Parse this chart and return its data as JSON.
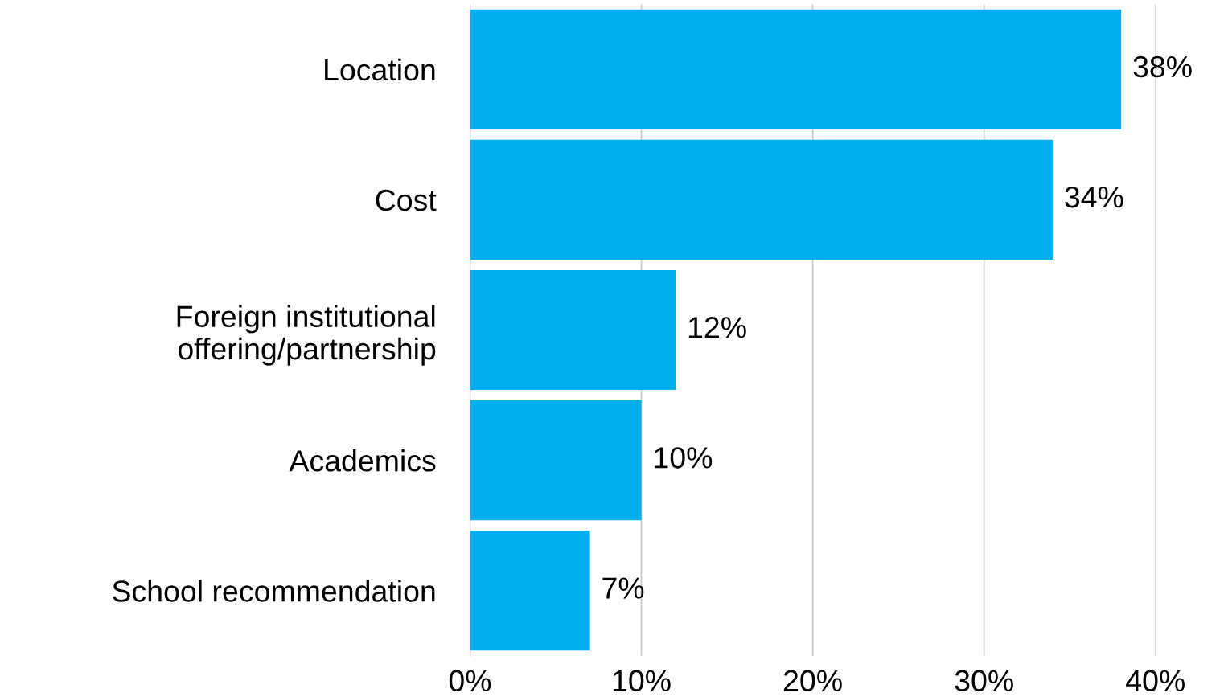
{
  "chart_data": {
    "type": "bar",
    "orientation": "horizontal",
    "categories": [
      "Location",
      "Cost",
      "Foreign institutional\noffering/partnership",
      "Academics",
      "School recommendation"
    ],
    "values": [
      38,
      34,
      12,
      10,
      7
    ],
    "value_labels": [
      "38%",
      "34%",
      "12%",
      "10%",
      "7%"
    ],
    "color": "#00aeef",
    "xlim": [
      0,
      40
    ],
    "xticks": [
      {
        "value": 0,
        "label": "0%"
      },
      {
        "value": 10,
        "label": "10%"
      },
      {
        "value": 20,
        "label": "20%"
      },
      {
        "value": 30,
        "label": "30%"
      },
      {
        "value": 40,
        "label": "40%"
      }
    ],
    "grid": "x"
  }
}
